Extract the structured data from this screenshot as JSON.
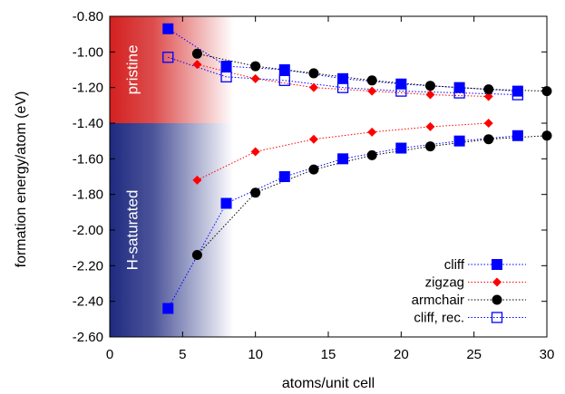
{
  "chart_data": {
    "type": "line",
    "xlabel": "atoms/unit cell",
    "ylabel": "formation energy/atom (eV)",
    "xlim": [
      0,
      30
    ],
    "ylim": [
      -2.6,
      -0.8
    ],
    "xticks": [
      0,
      5,
      10,
      15,
      20,
      25,
      30
    ],
    "yticks": [
      -0.8,
      -1.0,
      -1.2,
      -1.4,
      -1.6,
      -1.8,
      -2.0,
      -2.2,
      -2.4,
      -2.6
    ],
    "xtick_labels": [
      "0",
      "5",
      "10",
      "15",
      "20",
      "25",
      "30"
    ],
    "ytick_labels": [
      "-0.80",
      "-1.00",
      "-1.20",
      "-1.40",
      "-1.60",
      "-1.80",
      "-2.00",
      "-2.20",
      "-2.40",
      "-2.60"
    ],
    "grid": false,
    "legend_position": "bottom-right",
    "regions": [
      {
        "label": "pristine",
        "y_range": [
          -1.4,
          -0.8
        ],
        "x_range": [
          0,
          8.5
        ],
        "color": "#d42020"
      },
      {
        "label": "H-saturated",
        "y_range": [
          -2.6,
          -1.4
        ],
        "x_range": [
          0,
          8.5
        ],
        "color": "#1f2a80"
      }
    ],
    "series": [
      {
        "name": "cliff",
        "marker": "filled-square",
        "color": "#0000ff",
        "group": "pristine",
        "x": [
          4,
          8,
          12,
          16,
          20,
          24,
          28
        ],
        "y": [
          -0.87,
          -1.08,
          -1.1,
          -1.15,
          -1.18,
          -1.2,
          -1.22
        ]
      },
      {
        "name": "zigzag",
        "marker": "filled-diamond",
        "color": "#ff0000",
        "group": "pristine",
        "x": [
          6,
          10,
          14,
          18,
          22,
          26
        ],
        "y": [
          -1.07,
          -1.15,
          -1.2,
          -1.22,
          -1.24,
          -1.25
        ]
      },
      {
        "name": "armchair",
        "marker": "filled-circle",
        "color": "#000000",
        "group": "pristine",
        "x": [
          6,
          10,
          14,
          18,
          22,
          26,
          30
        ],
        "y": [
          -1.01,
          -1.08,
          -1.12,
          -1.16,
          -1.19,
          -1.21,
          -1.22
        ]
      },
      {
        "name": "cliff, rec.",
        "marker": "open-square",
        "color": "#0000ff",
        "group": "pristine",
        "x": [
          4,
          8,
          12,
          16,
          20,
          24,
          28
        ],
        "y": [
          -1.03,
          -1.14,
          -1.16,
          -1.2,
          -1.22,
          -1.23,
          -1.24
        ]
      },
      {
        "name": "cliff",
        "marker": "filled-square",
        "color": "#0000ff",
        "group": "H-saturated",
        "x": [
          4,
          8,
          12,
          16,
          20,
          24,
          28
        ],
        "y": [
          -2.44,
          -1.85,
          -1.7,
          -1.6,
          -1.54,
          -1.5,
          -1.47
        ]
      },
      {
        "name": "zigzag",
        "marker": "filled-diamond",
        "color": "#ff0000",
        "group": "H-saturated",
        "x": [
          6,
          10,
          14,
          18,
          22,
          26
        ],
        "y": [
          -1.72,
          -1.56,
          -1.49,
          -1.45,
          -1.42,
          -1.4
        ]
      },
      {
        "name": "armchair",
        "marker": "filled-circle",
        "color": "#000000",
        "group": "H-saturated",
        "x": [
          6,
          10,
          14,
          18,
          22,
          26,
          30
        ],
        "y": [
          -2.14,
          -1.79,
          -1.66,
          -1.58,
          -1.53,
          -1.49,
          -1.47
        ]
      }
    ],
    "legend": [
      {
        "label": "cliff",
        "marker": "filled-square",
        "color": "#0000ff"
      },
      {
        "label": "zigzag",
        "marker": "filled-diamond",
        "color": "#ff0000"
      },
      {
        "label": "armchair",
        "marker": "filled-circle",
        "color": "#000000"
      },
      {
        "label": "cliff, rec.",
        "marker": "open-square",
        "color": "#0000ff"
      }
    ]
  }
}
